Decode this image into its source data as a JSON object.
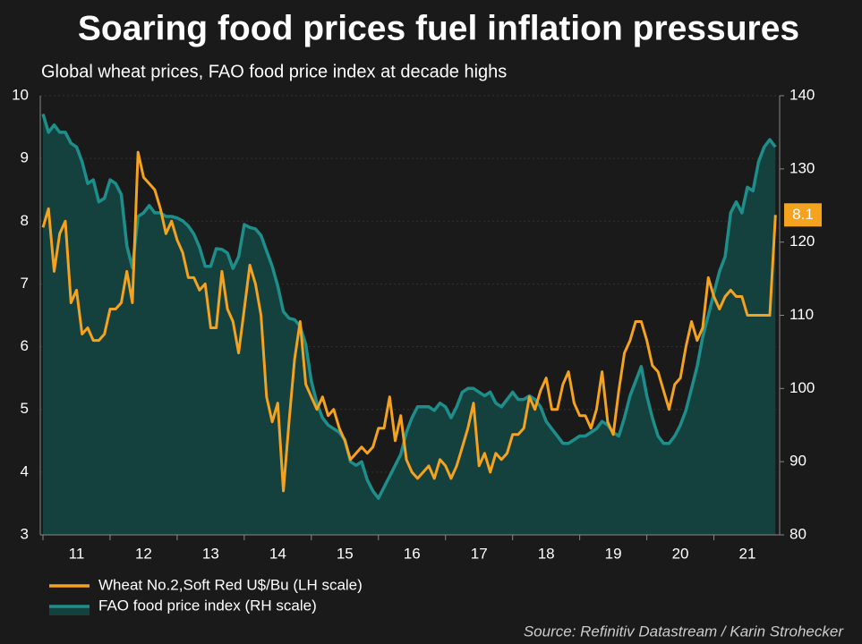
{
  "chart_data": {
    "type": "line",
    "title": "Soaring food prices fuel inflation pressures",
    "subtitle": "Global wheat prices, FAO food price index at decade highs",
    "source": "Source: Refinitiv Datastream / Karin Strohecker",
    "x": [
      11,
      11.083,
      11.167,
      11.25,
      11.333,
      11.417,
      11.5,
      11.583,
      11.667,
      11.75,
      11.833,
      11.917,
      12,
      12.083,
      12.167,
      12.25,
      12.333,
      12.417,
      12.5,
      12.583,
      12.667,
      12.75,
      12.833,
      12.917,
      13,
      13.083,
      13.167,
      13.25,
      13.333,
      13.417,
      13.5,
      13.583,
      13.667,
      13.75,
      13.833,
      13.917,
      14,
      14.083,
      14.167,
      14.25,
      14.333,
      14.417,
      14.5,
      14.583,
      14.667,
      14.75,
      14.833,
      14.917,
      15,
      15.083,
      15.167,
      15.25,
      15.333,
      15.417,
      15.5,
      15.583,
      15.667,
      15.75,
      15.833,
      15.917,
      16,
      16.083,
      16.167,
      16.25,
      16.333,
      16.417,
      16.5,
      16.583,
      16.667,
      16.75,
      16.833,
      16.917,
      17,
      17.083,
      17.167,
      17.25,
      17.333,
      17.417,
      17.5,
      17.583,
      17.667,
      17.75,
      17.833,
      17.917,
      18,
      18.083,
      18.167,
      18.25,
      18.333,
      18.417,
      18.5,
      18.583,
      18.667,
      18.75,
      18.833,
      18.917,
      19,
      19.083,
      19.167,
      19.25,
      19.333,
      19.417,
      19.5,
      19.583,
      19.667,
      19.75,
      19.833,
      19.917,
      20,
      20.083,
      20.167,
      20.25,
      20.333,
      20.417,
      20.5,
      20.583,
      20.667,
      20.75,
      20.833,
      20.917,
      21,
      21.083,
      21.167,
      21.25,
      21.333,
      21.417,
      21.5,
      21.583,
      21.667,
      21.75,
      21.833,
      21.917
    ],
    "xlim": [
      10.96,
      21.98
    ],
    "xticks": [
      11,
      12,
      13,
      14,
      15,
      16,
      17,
      18,
      19,
      20,
      21
    ],
    "ylim": [
      3,
      10
    ],
    "yticks": [
      3,
      4,
      5,
      6,
      7,
      8,
      9,
      10
    ],
    "y2lim": [
      80,
      140
    ],
    "y2ticks": [
      80,
      90,
      100,
      110,
      120,
      130,
      140
    ],
    "grid": true,
    "series": [
      {
        "name": "Wheat No.2,Soft Red U$/Bu (LH scale)",
        "color": "#f5a21e",
        "values": [
          7.9,
          8.2,
          7.2,
          7.8,
          8.0,
          6.7,
          6.9,
          6.2,
          6.3,
          6.1,
          6.1,
          6.2,
          6.6,
          6.6,
          6.7,
          7.2,
          6.7,
          9.1,
          8.7,
          8.6,
          8.5,
          8.2,
          7.8,
          8.0,
          7.7,
          7.5,
          7.1,
          7.1,
          6.9,
          7.0,
          6.3,
          6.3,
          7.2,
          6.6,
          6.4,
          5.9,
          6.6,
          7.3,
          7.0,
          6.5,
          5.2,
          4.8,
          5.1,
          3.7,
          4.8,
          5.8,
          6.4,
          5.4,
          5.2,
          5.0,
          5.2,
          4.9,
          5.0,
          4.7,
          4.5,
          4.2,
          4.3,
          4.4,
          4.3,
          4.4,
          4.7,
          4.7,
          5.2,
          4.5,
          4.9,
          4.2,
          4.0,
          3.9,
          4.0,
          4.1,
          3.9,
          4.2,
          4.1,
          3.9,
          4.1,
          4.4,
          4.7,
          5.1,
          4.1,
          4.3,
          4.0,
          4.3,
          4.2,
          4.3,
          4.6,
          4.6,
          4.7,
          5.2,
          5.0,
          5.3,
          5.5,
          5.0,
          5.0,
          5.4,
          5.6,
          5.1,
          4.9,
          4.9,
          4.7,
          5.0,
          5.6,
          4.8,
          4.6,
          5.3,
          5.9,
          6.1,
          6.4,
          6.4,
          6.1,
          5.7,
          5.6,
          5.3,
          5.0,
          5.4,
          5.5,
          6.0,
          6.4,
          6.1,
          6.3,
          7.1,
          6.8,
          6.6,
          6.8,
          6.9,
          6.8,
          6.8,
          6.5,
          6.5,
          6.5,
          6.5,
          6.5,
          8.1
        ]
      },
      {
        "name": "FAO food price index (RH scale)",
        "color": "#1d8e8a",
        "axis": "y2",
        "values": [
          137.5,
          135,
          136,
          135,
          135,
          133.5,
          133,
          131,
          128,
          128.5,
          125.5,
          126,
          128.5,
          128,
          126.5,
          119.5,
          116.5,
          123.5,
          124,
          125,
          124,
          124,
          123.5,
          123.5,
          123.3,
          122.9,
          122.2,
          121.1,
          119.3,
          116.7,
          116.7,
          119.1,
          119,
          118.5,
          116.4,
          118,
          122.4,
          122,
          121.8,
          120.9,
          118.8,
          116.7,
          114,
          110.5,
          109.6,
          109.4,
          108.5,
          106,
          101,
          98,
          96,
          95,
          94.5,
          94,
          93,
          90,
          89.5,
          90,
          87.5,
          86,
          85,
          86.5,
          88,
          89.5,
          91,
          94,
          96,
          97.5,
          97.5,
          97.5,
          97,
          98,
          97.5,
          96,
          97.5,
          99.5,
          100,
          100,
          99.5,
          99,
          99.5,
          98,
          97.5,
          98.5,
          99.5,
          98.5,
          98.5,
          99,
          98.5,
          97.5,
          95.5,
          94.5,
          93.5,
          92.5,
          92.5,
          93,
          93.5,
          93.5,
          94,
          94.5,
          95.5,
          95,
          94,
          93.5,
          96,
          99,
          101,
          103,
          99,
          96,
          93.5,
          92.5,
          92.5,
          93.5,
          95,
          97,
          100,
          103,
          107,
          110,
          113,
          116,
          118,
          124,
          125.5,
          124,
          127.5,
          127,
          131,
          133,
          134,
          133
        ]
      }
    ]
  }
}
